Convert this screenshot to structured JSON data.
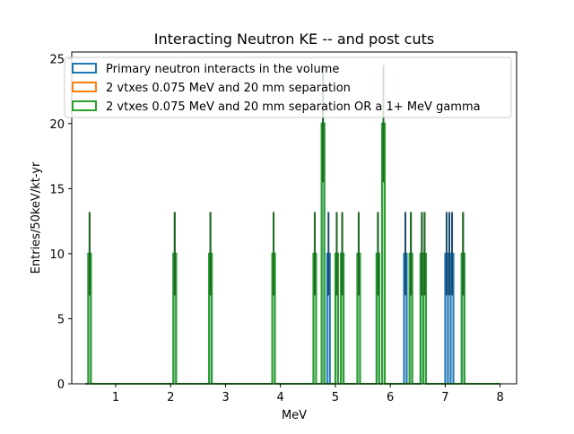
{
  "chart_data": {
    "type": "bar",
    "histtype": "step",
    "title": "Interacting Neutron KE -- and post cuts",
    "xlabel": "MeV",
    "ylabel": "Entries/50keV/kt-yr",
    "xlim": [
      0.2,
      8.3
    ],
    "ylim": [
      0,
      25.5
    ],
    "xticks": [
      1,
      2,
      3,
      4,
      5,
      6,
      7,
      8
    ],
    "yticks": [
      0,
      5,
      10,
      15,
      20,
      25
    ],
    "bin_width": 0.05,
    "range": [
      0.45,
      8.0
    ],
    "legend_position": "top-right",
    "grid": false,
    "error_bars": true,
    "series": [
      {
        "name": "Primary neutron interacts in the volume",
        "color": "#1f77b4",
        "bins": [
          {
            "x": 0.525,
            "y": 10
          },
          {
            "x": 2.075,
            "y": 10
          },
          {
            "x": 2.725,
            "y": 10
          },
          {
            "x": 3.875,
            "y": 10
          },
          {
            "x": 4.625,
            "y": 10
          },
          {
            "x": 4.775,
            "y": 20
          },
          {
            "x": 4.875,
            "y": 10
          },
          {
            "x": 5.025,
            "y": 10
          },
          {
            "x": 5.125,
            "y": 10
          },
          {
            "x": 5.425,
            "y": 10
          },
          {
            "x": 5.775,
            "y": 10
          },
          {
            "x": 5.875,
            "y": 20
          },
          {
            "x": 6.275,
            "y": 10
          },
          {
            "x": 6.375,
            "y": 10
          },
          {
            "x": 6.575,
            "y": 10
          },
          {
            "x": 6.625,
            "y": 10
          },
          {
            "x": 7.025,
            "y": 10
          },
          {
            "x": 7.075,
            "y": 10
          },
          {
            "x": 7.125,
            "y": 10
          },
          {
            "x": 7.325,
            "y": 10
          }
        ]
      },
      {
        "name": "2 vtxes 0.075 MeV and 20 mm separation",
        "color": "#ff7f0e",
        "bins": []
      },
      {
        "name": "2 vtxes 0.075 MeV and 20 mm separation OR a 1+ MeV gamma",
        "color": "#2ca02c",
        "bins": [
          {
            "x": 0.525,
            "y": 10
          },
          {
            "x": 2.075,
            "y": 10
          },
          {
            "x": 2.725,
            "y": 10
          },
          {
            "x": 3.875,
            "y": 10
          },
          {
            "x": 4.625,
            "y": 10
          },
          {
            "x": 4.775,
            "y": 20
          },
          {
            "x": 5.025,
            "y": 10
          },
          {
            "x": 5.125,
            "y": 10
          },
          {
            "x": 5.425,
            "y": 10
          },
          {
            "x": 5.775,
            "y": 10
          },
          {
            "x": 5.875,
            "y": 20
          },
          {
            "x": 6.375,
            "y": 10
          },
          {
            "x": 6.575,
            "y": 10
          },
          {
            "x": 6.625,
            "y": 10
          },
          {
            "x": 7.325,
            "y": 10
          }
        ]
      }
    ]
  }
}
